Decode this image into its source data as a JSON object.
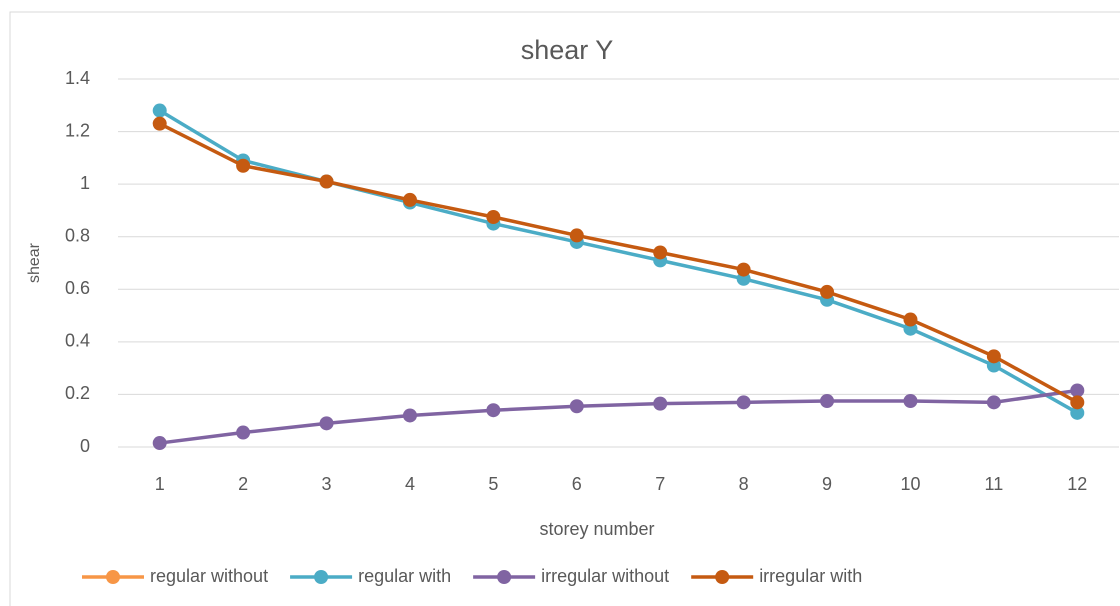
{
  "chart_data": {
    "type": "line",
    "title": "shear Y",
    "x_label": "storey number",
    "y_label": "shear",
    "categories": [
      "1",
      "2",
      "3",
      "4",
      "5",
      "6",
      "7",
      "8",
      "9",
      "10",
      "11",
      "12"
    ],
    "ylim": [
      0,
      1.4
    ],
    "yticks": [
      0,
      0.2,
      0.4,
      0.6,
      0.8,
      1,
      1.2,
      1.4
    ],
    "grid": true,
    "legend": "bottom",
    "series": [
      {
        "name": "regular without",
        "color": "#f79646",
        "values": [
          null,
          null,
          null,
          null,
          null,
          null,
          null,
          null,
          null,
          null,
          null,
          null
        ]
      },
      {
        "name": "regular with",
        "color": "#4bacc6",
        "values": [
          1.28,
          1.09,
          1.01,
          0.93,
          0.85,
          0.78,
          0.71,
          0.64,
          0.56,
          0.45,
          0.31,
          0.13
        ]
      },
      {
        "name": "irregular without",
        "color": "#8064a2",
        "values": [
          0.015,
          0.055,
          0.09,
          0.12,
          0.14,
          0.155,
          0.165,
          0.17,
          0.175,
          0.175,
          0.17,
          0.215
        ]
      },
      {
        "name": "irregular with",
        "color": "#c55a11",
        "values": [
          1.23,
          1.07,
          1.01,
          0.94,
          0.875,
          0.805,
          0.74,
          0.675,
          0.59,
          0.485,
          0.345,
          0.17
        ]
      }
    ]
  }
}
